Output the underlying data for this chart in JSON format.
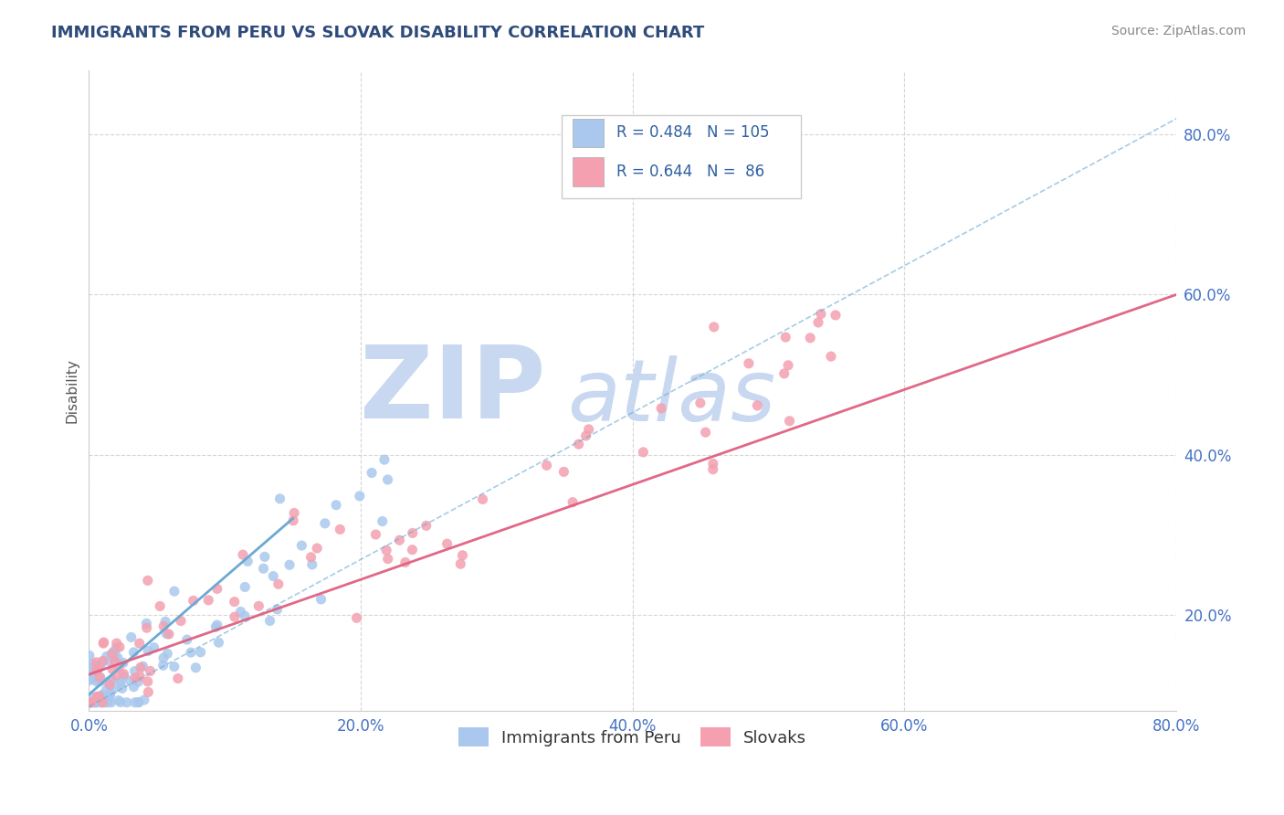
{
  "title": "IMMIGRANTS FROM PERU VS SLOVAK DISABILITY CORRELATION CHART",
  "source": "Source: ZipAtlas.com",
  "ylabel": "Disability",
  "xlim": [
    0.0,
    0.8
  ],
  "ylim": [
    0.08,
    0.88
  ],
  "xticks": [
    0.0,
    0.2,
    0.4,
    0.6,
    0.8
  ],
  "yticks": [
    0.2,
    0.4,
    0.6,
    0.8
  ],
  "xtick_labels": [
    "0.0%",
    "20.0%",
    "40.0%",
    "60.0%",
    "80.0%"
  ],
  "ytick_labels": [
    "20.0%",
    "40.0%",
    "60.0%",
    "80.0%"
  ],
  "blue_R": 0.484,
  "blue_N": 105,
  "pink_R": 0.644,
  "pink_N": 86,
  "blue_color": "#aac8ed",
  "pink_color": "#f4a0b0",
  "blue_line_color": "#6aaad4",
  "pink_line_color": "#e06080",
  "watermark_zip": "ZIP",
  "watermark_atlas": "atlas",
  "watermark_color_zip": "#c8d8f0",
  "watermark_color_atlas": "#c8d8f0",
  "background_color": "#ffffff",
  "grid_color": "#cccccc",
  "title_color": "#2e4b7a",
  "axis_label_color": "#555555",
  "tick_label_color": "#4472c4",
  "legend_text_color": "#2e5fa3",
  "source_color": "#888888"
}
